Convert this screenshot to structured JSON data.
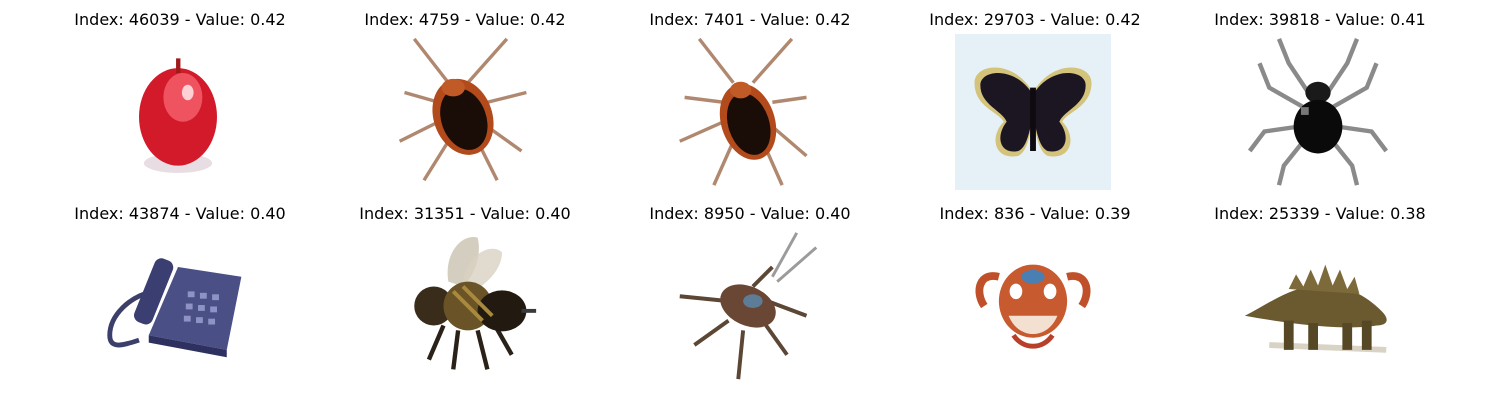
{
  "panels": [
    {
      "title": "Index: 46039 - Value: 0.42",
      "subject": "apple"
    },
    {
      "title": "Index: 4759 - Value: 0.42",
      "subject": "cockroach"
    },
    {
      "title": "Index: 7401 - Value: 0.42",
      "subject": "cockroach"
    },
    {
      "title": "Index: 29703 - Value: 0.42",
      "subject": "butterfly"
    },
    {
      "title": "Index: 39818 - Value: 0.41",
      "subject": "spider"
    },
    {
      "title": "Index: 43874 - Value: 0.40",
      "subject": "telephone"
    },
    {
      "title": "Index: 31351 - Value: 0.40",
      "subject": "bee"
    },
    {
      "title": "Index: 8950 - Value: 0.40",
      "subject": "cockroach"
    },
    {
      "title": "Index: 836 - Value: 0.39",
      "subject": "crab"
    },
    {
      "title": "Index: 25339 - Value: 0.38",
      "subject": "dinosaur"
    }
  ]
}
